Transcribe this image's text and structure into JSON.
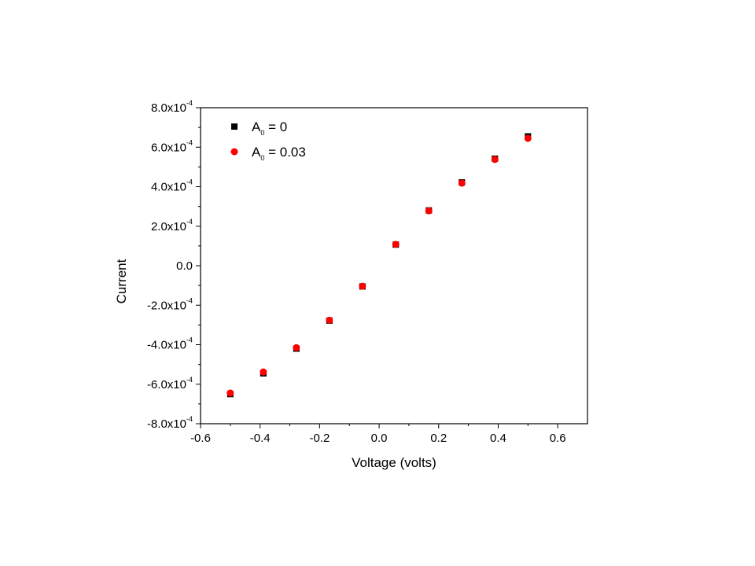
{
  "chart_data": {
    "type": "scatter",
    "title": "",
    "xlabel": "Voltage (volts)",
    "ylabel": "Current",
    "xlim": [
      -0.6,
      0.7
    ],
    "ylim": [
      -0.0008,
      0.0008
    ],
    "grid": false,
    "legend": "top-left",
    "x_ticks": [
      {
        "value": -0.6,
        "label": "-0.6"
      },
      {
        "value": -0.4,
        "label": "-0.4"
      },
      {
        "value": -0.2,
        "label": "-0.2"
      },
      {
        "value": 0.0,
        "label": "0.0"
      },
      {
        "value": 0.2,
        "label": "0.2"
      },
      {
        "value": 0.4,
        "label": "0.4"
      },
      {
        "value": 0.6,
        "label": "0.6"
      }
    ],
    "y_ticks": [
      {
        "value": 0.0008,
        "mantissa": "8.0x10",
        "exponent": "-4"
      },
      {
        "value": 0.0006,
        "mantissa": "6.0x10",
        "exponent": "-4"
      },
      {
        "value": 0.0004,
        "mantissa": "4.0x10",
        "exponent": "-4"
      },
      {
        "value": 0.0002,
        "mantissa": "2.0x10",
        "exponent": "-4"
      },
      {
        "value": 0.0,
        "mantissa": "0.0",
        "exponent": ""
      },
      {
        "value": -0.0002,
        "mantissa": "-2.0x10",
        "exponent": "-4"
      },
      {
        "value": -0.0004,
        "mantissa": "-4.0x10",
        "exponent": "-4"
      },
      {
        "value": -0.0006,
        "mantissa": "-6.0x10",
        "exponent": "-4"
      },
      {
        "value": -0.0008,
        "mantissa": "-8.0x10",
        "exponent": "-4"
      }
    ],
    "series": [
      {
        "legend_base": "A",
        "legend_sub": "0",
        "legend_rest": " = 0",
        "marker": "square",
        "color": "#000000",
        "x": [
          -0.5,
          -0.389,
          -0.278,
          -0.167,
          -0.056,
          0.056,
          0.167,
          0.278,
          0.389,
          0.5
        ],
        "y": [
          -0.00065,
          -0.000545,
          -0.00042,
          -0.000278,
          -0.000105,
          0.000107,
          0.00028,
          0.000422,
          0.000542,
          0.000655
        ]
      },
      {
        "legend_base": "A",
        "legend_sub": "0",
        "legend_rest": " = 0.03",
        "marker": "circle",
        "color": "#ff0000",
        "x": [
          -0.5,
          -0.389,
          -0.278,
          -0.167,
          -0.056,
          0.056,
          0.167,
          0.278,
          0.389,
          0.5
        ],
        "y": [
          -0.000645,
          -0.000538,
          -0.000415,
          -0.000276,
          -0.000104,
          0.000108,
          0.000278,
          0.000418,
          0.000538,
          0.000645
        ]
      }
    ]
  }
}
